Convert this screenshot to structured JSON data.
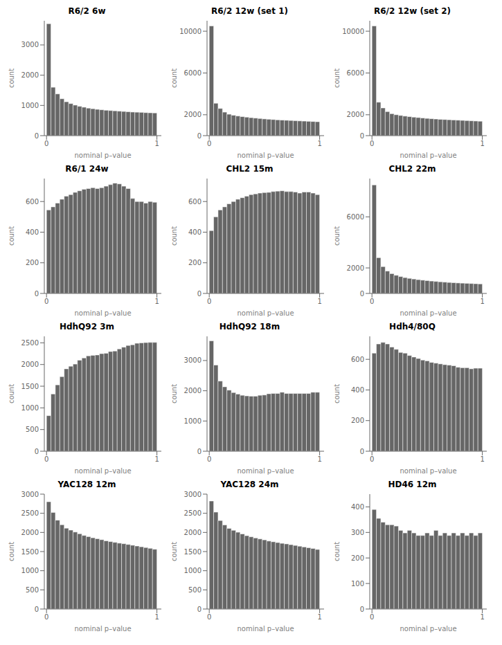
{
  "chart_data": [
    {
      "type": "histogram",
      "title": "R6/2 6w",
      "x_label": "nominal p–value",
      "y_label": "count",
      "color": "#666666",
      "bins": [
        0,
        0.04,
        0.08,
        0.12,
        0.16,
        0.2,
        0.24,
        0.28,
        0.32,
        0.36,
        0.4,
        0.44,
        0.48,
        0.52,
        0.56,
        0.6,
        0.64,
        0.68,
        0.72,
        0.76,
        0.8,
        0.84,
        0.88,
        0.92,
        0.96,
        1
      ],
      "values": [
        3700,
        1600,
        1380,
        1220,
        1120,
        1060,
        1010,
        970,
        940,
        910,
        890,
        870,
        855,
        840,
        830,
        820,
        810,
        800,
        790,
        780,
        775,
        770,
        760,
        755,
        750
      ],
      "xlim": [
        -0.02,
        1.04
      ],
      "xticks": [
        0,
        1
      ],
      "ylim": [
        0,
        3800
      ],
      "yticks": [
        0,
        1000,
        2000,
        3000
      ]
    },
    {
      "type": "histogram",
      "title": "R6/2 12w (set 1)",
      "x_label": "nominal p–value",
      "y_label": "count",
      "color": "#666666",
      "bins": [
        0,
        0.04,
        0.08,
        0.12,
        0.16,
        0.2,
        0.24,
        0.28,
        0.32,
        0.36,
        0.4,
        0.44,
        0.48,
        0.52,
        0.56,
        0.6,
        0.64,
        0.68,
        0.72,
        0.76,
        0.8,
        0.84,
        0.88,
        0.92,
        0.96,
        1
      ],
      "values": [
        10500,
        3100,
        2600,
        2250,
        2050,
        1950,
        1880,
        1820,
        1770,
        1720,
        1680,
        1640,
        1600,
        1570,
        1540,
        1510,
        1490,
        1470,
        1450,
        1430,
        1410,
        1390,
        1370,
        1350,
        1330
      ],
      "xlim": [
        -0.02,
        1.04
      ],
      "xticks": [
        0,
        1
      ],
      "ylim": [
        0,
        11000
      ],
      "yticks": [
        0,
        2000,
        6000,
        10000
      ]
    },
    {
      "type": "histogram",
      "title": "R6/2 12w (set 2)",
      "x_label": "nominal p–value",
      "y_label": "count",
      "color": "#666666",
      "bins": [
        0,
        0.04,
        0.08,
        0.12,
        0.16,
        0.2,
        0.24,
        0.28,
        0.32,
        0.36,
        0.4,
        0.44,
        0.48,
        0.52,
        0.56,
        0.6,
        0.64,
        0.68,
        0.72,
        0.76,
        0.8,
        0.84,
        0.88,
        0.92,
        0.96,
        1
      ],
      "values": [
        10500,
        3200,
        2650,
        2300,
        2100,
        2000,
        1930,
        1870,
        1820,
        1770,
        1730,
        1690,
        1650,
        1620,
        1590,
        1560,
        1540,
        1520,
        1500,
        1480,
        1460,
        1440,
        1420,
        1400,
        1380
      ],
      "xlim": [
        -0.02,
        1.04
      ],
      "xticks": [
        0,
        1
      ],
      "ylim": [
        0,
        11000
      ],
      "yticks": [
        0,
        2000,
        6000,
        10000
      ]
    },
    {
      "type": "histogram",
      "title": "R6/1 24w",
      "x_label": "nominal p–value",
      "y_label": "count",
      "color": "#666666",
      "bins": [
        0,
        0.04,
        0.08,
        0.12,
        0.16,
        0.2,
        0.24,
        0.28,
        0.32,
        0.36,
        0.4,
        0.44,
        0.48,
        0.52,
        0.56,
        0.6,
        0.64,
        0.68,
        0.72,
        0.76,
        0.8,
        0.84,
        0.88,
        0.92,
        0.96,
        1
      ],
      "values": [
        545,
        565,
        590,
        615,
        635,
        645,
        660,
        670,
        680,
        685,
        690,
        685,
        690,
        700,
        710,
        720,
        715,
        700,
        685,
        620,
        600,
        600,
        590,
        600,
        595
      ],
      "xlim": [
        -0.02,
        1.04
      ],
      "xticks": [
        0,
        1
      ],
      "ylim": [
        0,
        750
      ],
      "yticks": [
        0,
        200,
        400,
        600
      ]
    },
    {
      "type": "histogram",
      "title": "CHL2 15m",
      "x_label": "nominal p–value",
      "y_label": "count",
      "color": "#666666",
      "bins": [
        0,
        0.04,
        0.08,
        0.12,
        0.16,
        0.2,
        0.24,
        0.28,
        0.32,
        0.36,
        0.4,
        0.44,
        0.48,
        0.52,
        0.56,
        0.6,
        0.64,
        0.68,
        0.72,
        0.76,
        0.8,
        0.84,
        0.88,
        0.92,
        0.96,
        1
      ],
      "values": [
        410,
        500,
        545,
        565,
        585,
        600,
        615,
        625,
        635,
        645,
        650,
        655,
        658,
        660,
        665,
        668,
        670,
        665,
        665,
        662,
        655,
        662,
        662,
        655,
        645
      ],
      "xlim": [
        -0.02,
        1.04
      ],
      "xticks": [
        0,
        1
      ],
      "ylim": [
        0,
        750
      ],
      "yticks": [
        0,
        200,
        400,
        600
      ]
    },
    {
      "type": "histogram",
      "title": "CHL2 22m",
      "x_label": "nominal p–value",
      "y_label": "count",
      "color": "#666666",
      "bins": [
        0,
        0.04,
        0.08,
        0.12,
        0.16,
        0.2,
        0.24,
        0.28,
        0.32,
        0.36,
        0.4,
        0.44,
        0.48,
        0.52,
        0.56,
        0.6,
        0.64,
        0.68,
        0.72,
        0.76,
        0.8,
        0.84,
        0.88,
        0.92,
        0.96,
        1
      ],
      "values": [
        8500,
        2800,
        2100,
        1750,
        1550,
        1420,
        1320,
        1240,
        1180,
        1130,
        1080,
        1040,
        1005,
        970,
        940,
        910,
        885,
        860,
        840,
        820,
        805,
        790,
        775,
        760,
        745
      ],
      "xlim": [
        -0.02,
        1.04
      ],
      "xticks": [
        0,
        1
      ],
      "ylim": [
        0,
        9000
      ],
      "yticks": [
        0,
        2000,
        6000
      ]
    },
    {
      "type": "histogram",
      "title": "HdhQ92 3m",
      "x_label": "nominal p–value",
      "y_label": "count",
      "color": "#666666",
      "bins": [
        0,
        0.04,
        0.08,
        0.12,
        0.16,
        0.2,
        0.24,
        0.28,
        0.32,
        0.36,
        0.4,
        0.44,
        0.48,
        0.52,
        0.56,
        0.6,
        0.64,
        0.68,
        0.72,
        0.76,
        0.8,
        0.84,
        0.88,
        0.92,
        0.96,
        1
      ],
      "values": [
        820,
        1320,
        1530,
        1720,
        1900,
        1960,
        2010,
        2100,
        2150,
        2200,
        2210,
        2220,
        2250,
        2260,
        2300,
        2310,
        2360,
        2400,
        2440,
        2455,
        2490,
        2500,
        2505,
        2510,
        2510
      ],
      "xlim": [
        -0.02,
        1.04
      ],
      "xticks": [
        0,
        1
      ],
      "ylim": [
        0,
        2650
      ],
      "yticks": [
        0,
        500,
        1000,
        1500,
        2000,
        2500
      ]
    },
    {
      "type": "histogram",
      "title": "HdhQ92 18m",
      "x_label": "nominal p–value",
      "y_label": "count",
      "color": "#666666",
      "bins": [
        0,
        0.04,
        0.08,
        0.12,
        0.16,
        0.2,
        0.24,
        0.28,
        0.32,
        0.36,
        0.4,
        0.44,
        0.48,
        0.52,
        0.56,
        0.6,
        0.64,
        0.68,
        0.72,
        0.76,
        0.8,
        0.84,
        0.88,
        0.92,
        0.96,
        1
      ],
      "values": [
        3650,
        2850,
        2320,
        2130,
        2020,
        1940,
        1890,
        1850,
        1830,
        1820,
        1820,
        1850,
        1860,
        1900,
        1910,
        1910,
        1950,
        1910,
        1910,
        1910,
        1910,
        1910,
        1910,
        1950,
        1950
      ],
      "xlim": [
        -0.02,
        1.04
      ],
      "xticks": [
        0,
        1
      ],
      "ylim": [
        0,
        3800
      ],
      "yticks": [
        0,
        1000,
        2000,
        3000
      ]
    },
    {
      "type": "histogram",
      "title": "Hdh4/80Q",
      "x_label": "nominal p–value",
      "y_label": "count",
      "color": "#666666",
      "bins": [
        0,
        0.04,
        0.08,
        0.12,
        0.16,
        0.2,
        0.24,
        0.28,
        0.32,
        0.36,
        0.4,
        0.44,
        0.48,
        0.52,
        0.56,
        0.6,
        0.64,
        0.68,
        0.72,
        0.76,
        0.8,
        0.84,
        0.88,
        0.92,
        0.96,
        1
      ],
      "values": [
        640,
        700,
        710,
        700,
        680,
        665,
        645,
        640,
        625,
        615,
        605,
        595,
        590,
        580,
        575,
        570,
        565,
        562,
        558,
        548,
        545,
        545,
        538,
        542,
        542
      ],
      "xlim": [
        -0.02,
        1.04
      ],
      "xticks": [
        0,
        1
      ],
      "ylim": [
        0,
        750
      ],
      "yticks": [
        0,
        200,
        400,
        600
      ]
    },
    {
      "type": "histogram",
      "title": "YAC128 12m",
      "x_label": "nominal p–value",
      "y_label": "count",
      "color": "#666666",
      "bins": [
        0,
        0.04,
        0.08,
        0.12,
        0.16,
        0.2,
        0.24,
        0.28,
        0.32,
        0.36,
        0.4,
        0.44,
        0.48,
        0.52,
        0.56,
        0.6,
        0.64,
        0.68,
        0.72,
        0.76,
        0.8,
        0.84,
        0.88,
        0.92,
        0.96,
        1
      ],
      "values": [
        2800,
        2520,
        2320,
        2200,
        2110,
        2060,
        2010,
        1965,
        1920,
        1890,
        1860,
        1835,
        1810,
        1780,
        1760,
        1740,
        1720,
        1705,
        1685,
        1665,
        1645,
        1625,
        1605,
        1585,
        1560
      ],
      "xlim": [
        -0.02,
        1.04
      ],
      "xticks": [
        0,
        1
      ],
      "ylim": [
        0,
        3000
      ],
      "yticks": [
        0,
        500,
        1000,
        1500,
        2000,
        2500,
        3000
      ]
    },
    {
      "type": "histogram",
      "title": "YAC128 24m",
      "x_label": "nominal p–value",
      "y_label": "count",
      "color": "#666666",
      "bins": [
        0,
        0.04,
        0.08,
        0.12,
        0.16,
        0.2,
        0.24,
        0.28,
        0.32,
        0.36,
        0.4,
        0.44,
        0.48,
        0.52,
        0.56,
        0.6,
        0.64,
        0.68,
        0.72,
        0.76,
        0.8,
        0.84,
        0.88,
        0.92,
        0.96,
        1
      ],
      "values": [
        2820,
        2530,
        2310,
        2195,
        2105,
        2055,
        2005,
        1960,
        1915,
        1885,
        1855,
        1830,
        1805,
        1775,
        1755,
        1735,
        1715,
        1700,
        1680,
        1660,
        1640,
        1620,
        1600,
        1580,
        1555
      ],
      "xlim": [
        -0.02,
        1.04
      ],
      "xticks": [
        0,
        1
      ],
      "ylim": [
        0,
        3000
      ],
      "yticks": [
        0,
        500,
        1000,
        1500,
        2000,
        2500,
        3000
      ]
    },
    {
      "type": "histogram",
      "title": "HD46 12m",
      "x_label": "nominal p–value",
      "y_label": "count",
      "color": "#666666",
      "bins": [
        0,
        0.04,
        0.08,
        0.12,
        0.16,
        0.2,
        0.24,
        0.28,
        0.32,
        0.36,
        0.4,
        0.44,
        0.48,
        0.52,
        0.56,
        0.6,
        0.64,
        0.68,
        0.72,
        0.76,
        0.8,
        0.84,
        0.88,
        0.92,
        0.96,
        1
      ],
      "values": [
        390,
        355,
        340,
        330,
        330,
        325,
        308,
        298,
        308,
        298,
        288,
        288,
        298,
        288,
        308,
        288,
        298,
        288,
        298,
        288,
        298,
        288,
        298,
        288,
        298
      ],
      "xlim": [
        -0.02,
        1.04
      ],
      "xticks": [
        0,
        1
      ],
      "ylim": [
        0,
        450
      ],
      "yticks": [
        0,
        100,
        200,
        300,
        400
      ]
    }
  ]
}
